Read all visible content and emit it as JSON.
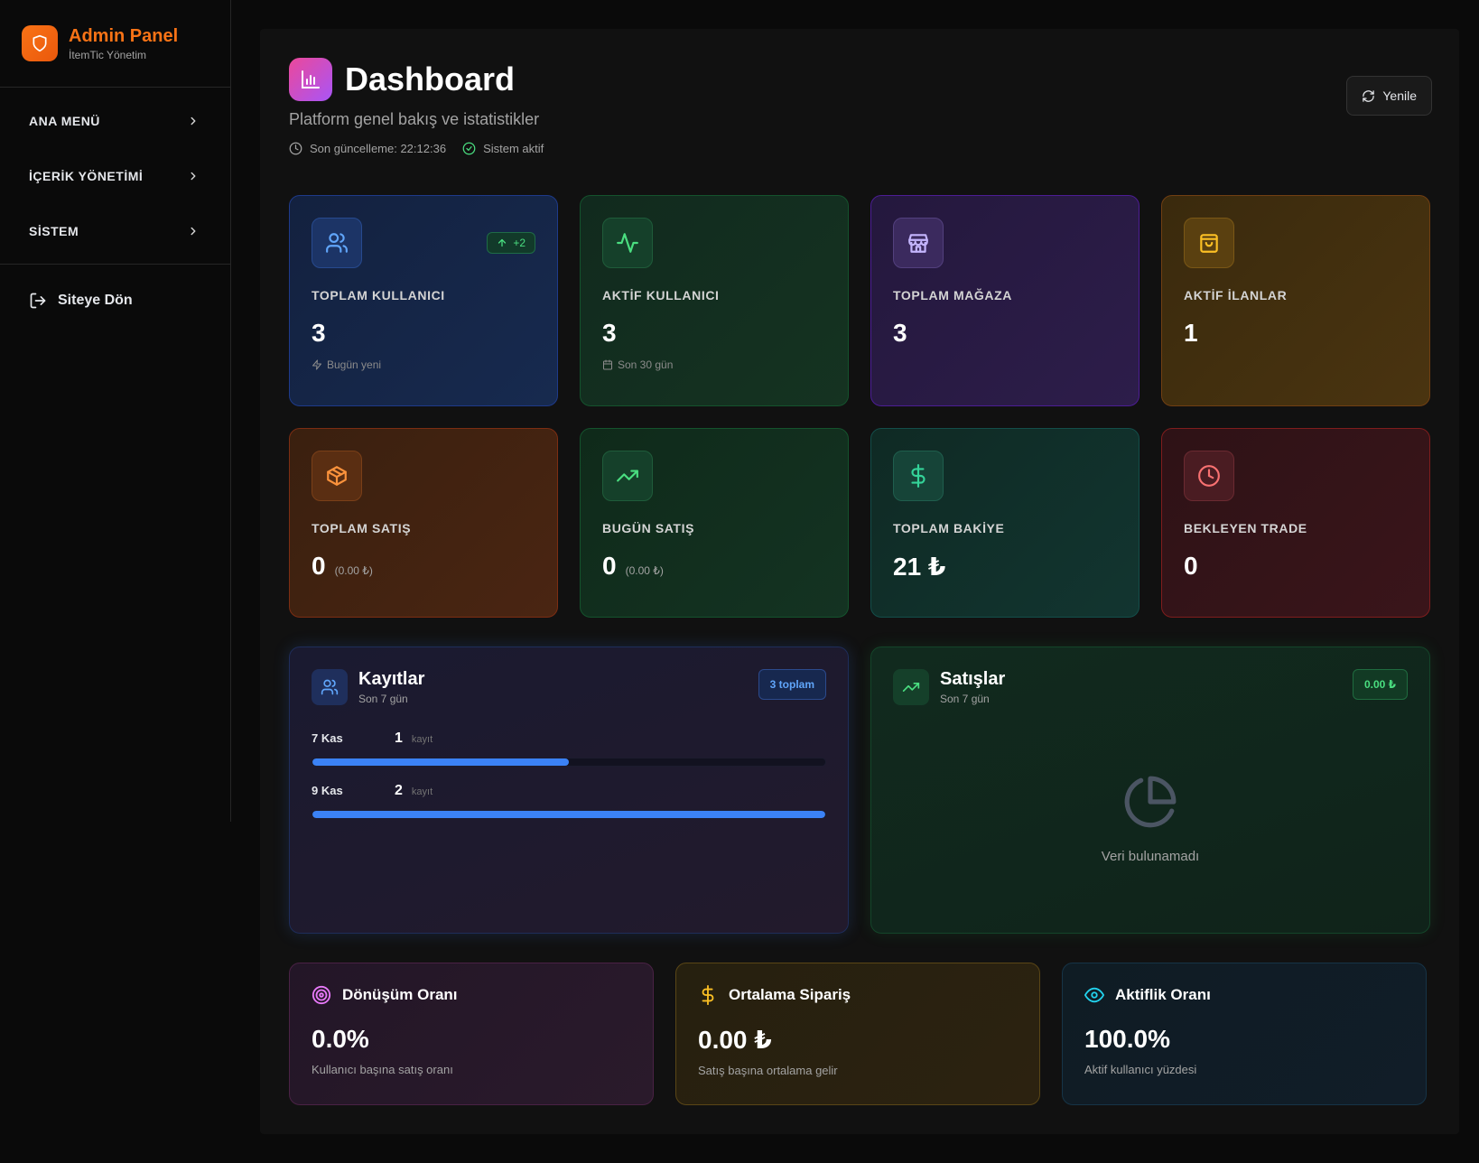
{
  "sidebar": {
    "brand_title": "Admin Panel",
    "brand_subtitle": "İtemTic Yönetim",
    "items": [
      {
        "label": "ANA MENÜ"
      },
      {
        "label": "İÇERİK YÖNETİMİ"
      },
      {
        "label": "SİSTEM"
      }
    ],
    "back_label": "Siteye Dön"
  },
  "header": {
    "title": "Dashboard",
    "subtitle": "Platform genel bakış ve istatistikler",
    "last_update": "Son güncelleme: 22:12:36",
    "status": "Sistem aktif",
    "refresh_label": "Yenile"
  },
  "stats": [
    {
      "label": "TOPLAM KULLANICI",
      "value": "3",
      "note": "Bugün yeni",
      "badge": "+2",
      "icon": "users-icon",
      "color": "#60a5fa"
    },
    {
      "label": "AKTİF KULLANICI",
      "value": "3",
      "note": "Son 30 gün",
      "icon": "activity-icon",
      "color": "#4ade80"
    },
    {
      "label": "TOPLAM MAĞAZA",
      "value": "3",
      "icon": "store-icon",
      "color": "#c4b5fd"
    },
    {
      "label": "AKTİF İLANLAR",
      "value": "1",
      "icon": "shopping-bag-icon",
      "color": "#fbbf24"
    },
    {
      "label": "TOPLAM SATIŞ",
      "value": "0",
      "extra": "(0.00 ₺)",
      "icon": "package-icon",
      "color": "#fb923c"
    },
    {
      "label": "BUGÜN SATIŞ",
      "value": "0",
      "extra": "(0.00 ₺)",
      "icon": "trending-up-icon",
      "color": "#4ade80"
    },
    {
      "label": "TOPLAM BAKİYE",
      "value": "21 ₺",
      "icon": "dollar-icon",
      "color": "#34d399"
    },
    {
      "label": "BEKLEYEN TRADE",
      "value": "0",
      "icon": "clock-icon",
      "color": "#f87171"
    }
  ],
  "registrations": {
    "title": "Kayıtlar",
    "subtitle": "Son 7 gün",
    "badge": "3 toplam",
    "unit": "kayıt",
    "max": 2,
    "rows": [
      {
        "date": "7 Kas",
        "count": 1
      },
      {
        "date": "9 Kas",
        "count": 2
      }
    ]
  },
  "sales": {
    "title": "Satışlar",
    "subtitle": "Son 7 gün",
    "badge": "0.00 ₺",
    "empty_text": "Veri bulunamadı"
  },
  "metrics": [
    {
      "title": "Dönüşüm Oranı",
      "value": "0.0%",
      "desc": "Kullanıcı başına satış oranı",
      "icon": "target-icon",
      "color": "#e879f9"
    },
    {
      "title": "Ortalama Sipariş",
      "value": "0.00 ₺",
      "desc": "Satış başına ortalama gelir",
      "icon": "dollar-icon",
      "color": "#fbbf24"
    },
    {
      "title": "Aktiflik Oranı",
      "value": "100.0%",
      "desc": "Aktif kullanıcı yüzdesi",
      "icon": "eye-icon",
      "color": "#22d3ee"
    }
  ]
}
